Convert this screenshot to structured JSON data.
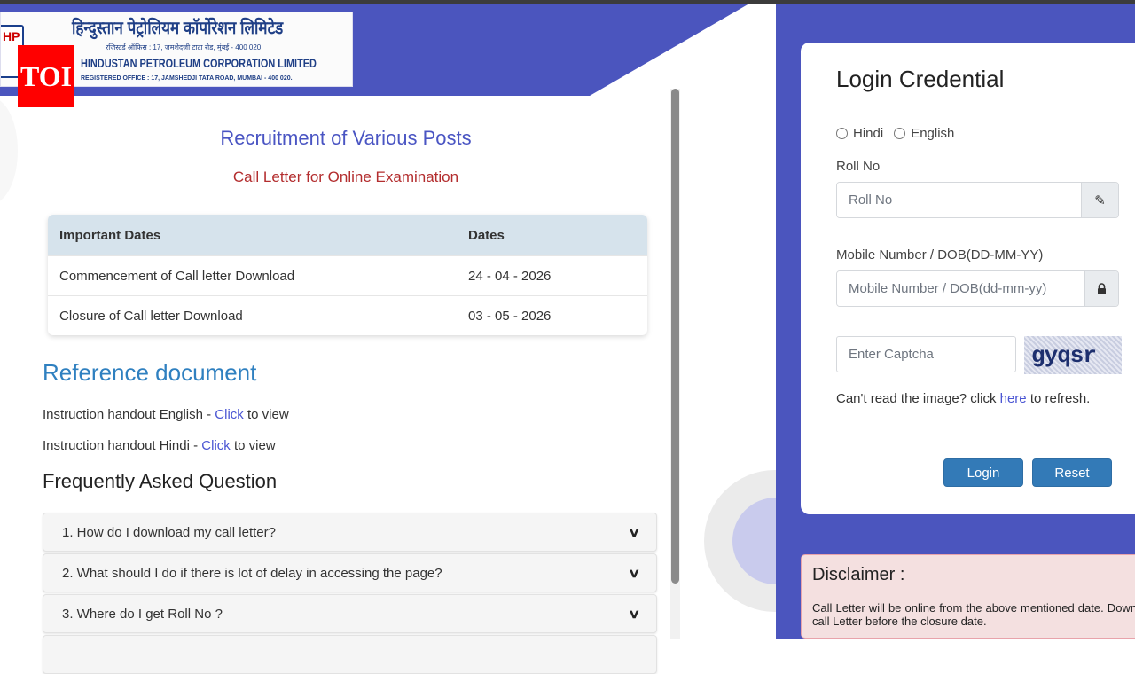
{
  "logo": {
    "hindi": "हिन्दुस्तान पेट्रोलियम कॉर्पोरेशन लिमिटेड",
    "hindi_address": "रजिस्टर्ड ऑफिस : 17, जमशेदजी टाटा रोड, मुंबई - 400 020.",
    "english": "HINDUSTAN PETROLEUM CORPORATION LIMITED",
    "address": "REGISTERED OFFICE : 17, JAMSHEDJI TATA ROAD, MUMBAI - 400 020.",
    "hp": "HP"
  },
  "watermark": "TOI",
  "main": {
    "title": "Recruitment of Various Posts",
    "subtitle": "Call Letter for Online Examination",
    "table": {
      "headers": [
        "Important Dates",
        "Dates"
      ],
      "rows": [
        [
          "Commencement of Call letter Download",
          "24 - 04 - 2026"
        ],
        [
          "Closure of Call letter Download",
          "03 - 05 - 2026"
        ]
      ]
    },
    "reference": {
      "heading": "Reference document",
      "items": [
        {
          "prefix": "Instruction handout English - ",
          "link": "Click",
          "suffix": " to view"
        },
        {
          "prefix": "Instruction handout Hindi - ",
          "link": "Click",
          "suffix": " to view"
        }
      ]
    },
    "faq": {
      "heading": "Frequently Asked Question",
      "items": [
        "1. How do I download my call letter?",
        "2. What should I do if there is lot of delay in accessing the page?",
        "3. Where do I get Roll No ?"
      ]
    }
  },
  "login": {
    "title": "Login Credential",
    "languages": [
      "Hindi",
      "English"
    ],
    "roll_label": "Roll No",
    "roll_placeholder": "Roll No",
    "mobile_label": "Mobile Number / DOB(DD-MM-YY)",
    "mobile_placeholder": "Mobile Number / DOB(dd-mm-yy)",
    "captcha_placeholder": "Enter Captcha",
    "captcha_text": "gyqsr",
    "refresh_prefix": "Can't read the image? click ",
    "refresh_link": "here",
    "refresh_suffix": " to refresh.",
    "login_button": "Login",
    "reset_button": "Reset"
  },
  "disclaimer": {
    "title": "Disclaimer :",
    "text": "Call Letter will be online from the above mentioned date. Download your call Letter before the closure date."
  },
  "colors": {
    "brand_blue": "#4b55be",
    "button": "#337ab7",
    "link": "#4a55d3",
    "subtitle_red": "#b32d2e"
  }
}
